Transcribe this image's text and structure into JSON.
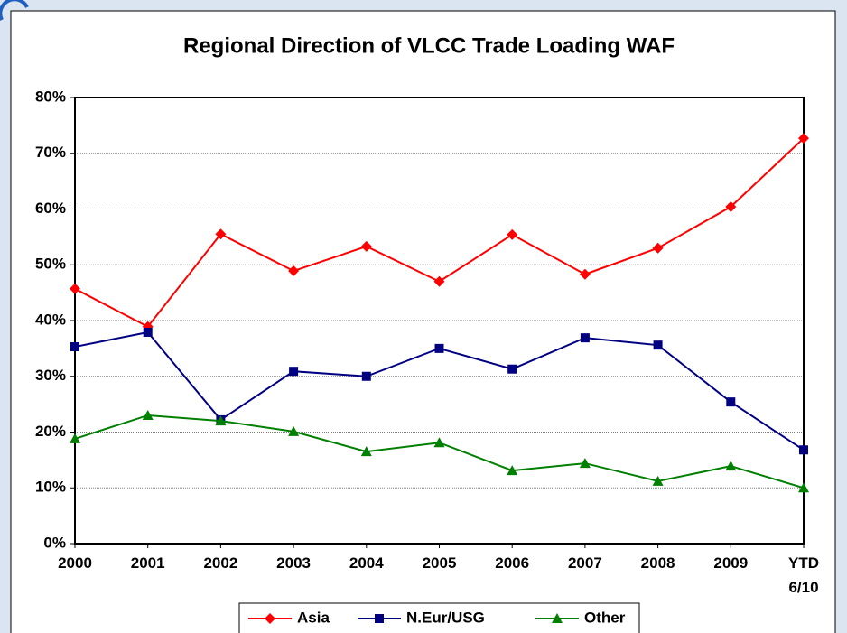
{
  "chart_data": {
    "type": "line",
    "title": "Regional Direction of VLCC Trade Loading WAF",
    "categories": [
      "2000",
      "2001",
      "2002",
      "2003",
      "2004",
      "2005",
      "2006",
      "2007",
      "2008",
      "2009",
      "YTD 6/10"
    ],
    "series": [
      {
        "name": "Asia",
        "color": "#ff0000",
        "marker": "diamond",
        "values": [
          45.7,
          38.9,
          55.5,
          48.9,
          53.3,
          47.0,
          55.4,
          48.3,
          53.0,
          60.4,
          72.7
        ]
      },
      {
        "name": "N.Eur/USG",
        "color": "#000080",
        "marker": "square",
        "values": [
          35.3,
          37.9,
          22.2,
          30.9,
          30.0,
          35.0,
          31.3,
          36.9,
          35.6,
          25.4,
          16.8
        ]
      },
      {
        "name": "Other",
        "color": "#008000",
        "marker": "triangle",
        "values": [
          18.8,
          23.0,
          22.0,
          20.1,
          16.5,
          18.1,
          13.1,
          14.4,
          11.2,
          13.9,
          10.0
        ]
      }
    ],
    "ylim": [
      0,
      80
    ],
    "yticks": [
      {
        "value": 0,
        "label": "0%"
      },
      {
        "value": 10,
        "label": "10%"
      },
      {
        "value": 20,
        "label": "20%"
      },
      {
        "value": 30,
        "label": "30%"
      },
      {
        "value": 40,
        "label": "40%"
      },
      {
        "value": 50,
        "label": "50%"
      },
      {
        "value": 60,
        "label": "60%"
      },
      {
        "value": 70,
        "label": "70%"
      },
      {
        "value": 80,
        "label": "80%"
      }
    ],
    "grid": true
  }
}
